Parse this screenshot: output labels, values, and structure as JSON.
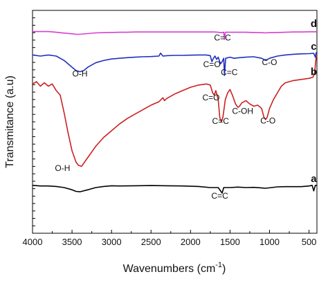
{
  "chart_data": {
    "type": "line",
    "ylabel": "Transmitance (a.u)",
    "xlabel_main": "Wavenumbers (cm",
    "xlabel_sup": "-1",
    "xlabel_close": ")",
    "x_reversed": true,
    "xlim": [
      4000,
      400
    ],
    "x_ticks": [
      4000,
      3500,
      3000,
      2500,
      2000,
      1500,
      1000,
      500
    ],
    "x_tick_labels": [
      "4000",
      "3500",
      "3000",
      "2500",
      "2000",
      "1500",
      "1000",
      "500"
    ],
    "y_ticks_labeled": false,
    "grid": false,
    "series": [
      {
        "name": "a",
        "color": "#000000",
        "points": [
          [
            4000,
            0.215
          ],
          [
            3900,
            0.212
          ],
          [
            3800,
            0.212
          ],
          [
            3700,
            0.21
          ],
          [
            3600,
            0.205
          ],
          [
            3500,
            0.195
          ],
          [
            3450,
            0.188
          ],
          [
            3400,
            0.186
          ],
          [
            3300,
            0.195
          ],
          [
            3200,
            0.205
          ],
          [
            3100,
            0.21
          ],
          [
            3000,
            0.213
          ],
          [
            2900,
            0.212
          ],
          [
            2700,
            0.213
          ],
          [
            2500,
            0.214
          ],
          [
            2300,
            0.213
          ],
          [
            2100,
            0.212
          ],
          [
            1900,
            0.21
          ],
          [
            1750,
            0.205
          ],
          [
            1650,
            0.205
          ],
          [
            1600,
            0.18
          ],
          [
            1580,
            0.205
          ],
          [
            1500,
            0.205
          ],
          [
            1400,
            0.207
          ],
          [
            1300,
            0.205
          ],
          [
            1200,
            0.206
          ],
          [
            1050,
            0.202
          ],
          [
            900,
            0.208
          ],
          [
            800,
            0.209
          ],
          [
            700,
            0.209
          ],
          [
            600,
            0.209
          ],
          [
            500,
            0.212
          ],
          [
            460,
            0.215
          ],
          [
            440,
            0.19
          ],
          [
            420,
            0.215
          ],
          [
            400,
            0.214
          ]
        ]
      },
      {
        "name": "b",
        "color": "#cc1f1f",
        "points": [
          [
            4000,
            0.67
          ],
          [
            3950,
            0.68
          ],
          [
            3900,
            0.66
          ],
          [
            3850,
            0.675
          ],
          [
            3800,
            0.66
          ],
          [
            3750,
            0.67
          ],
          [
            3700,
            0.64
          ],
          [
            3650,
            0.62
          ],
          [
            3600,
            0.54
          ],
          [
            3550,
            0.45
          ],
          [
            3500,
            0.37
          ],
          [
            3450,
            0.32
          ],
          [
            3420,
            0.305
          ],
          [
            3380,
            0.3
          ],
          [
            3300,
            0.34
          ],
          [
            3200,
            0.39
          ],
          [
            3100,
            0.43
          ],
          [
            3000,
            0.46
          ],
          [
            2900,
            0.49
          ],
          [
            2800,
            0.515
          ],
          [
            2700,
            0.535
          ],
          [
            2600,
            0.555
          ],
          [
            2500,
            0.575
          ],
          [
            2400,
            0.59
          ],
          [
            2350,
            0.608
          ],
          [
            2330,
            0.595
          ],
          [
            2300,
            0.605
          ],
          [
            2200,
            0.625
          ],
          [
            2100,
            0.64
          ],
          [
            2000,
            0.655
          ],
          [
            1900,
            0.665
          ],
          [
            1800,
            0.67
          ],
          [
            1750,
            0.665
          ],
          [
            1720,
            0.63
          ],
          [
            1700,
            0.62
          ],
          [
            1680,
            0.64
          ],
          [
            1650,
            0.6
          ],
          [
            1630,
            0.52
          ],
          [
            1610,
            0.5
          ],
          [
            1590,
            0.52
          ],
          [
            1560,
            0.6
          ],
          [
            1530,
            0.63
          ],
          [
            1500,
            0.645
          ],
          [
            1470,
            0.62
          ],
          [
            1430,
            0.58
          ],
          [
            1400,
            0.565
          ],
          [
            1380,
            0.57
          ],
          [
            1350,
            0.585
          ],
          [
            1300,
            0.595
          ],
          [
            1250,
            0.58
          ],
          [
            1200,
            0.57
          ],
          [
            1150,
            0.575
          ],
          [
            1100,
            0.56
          ],
          [
            1070,
            0.52
          ],
          [
            1050,
            0.51
          ],
          [
            1030,
            0.52
          ],
          [
            1000,
            0.56
          ],
          [
            950,
            0.6
          ],
          [
            900,
            0.63
          ],
          [
            850,
            0.66
          ],
          [
            800,
            0.675
          ],
          [
            700,
            0.685
          ],
          [
            600,
            0.69
          ],
          [
            500,
            0.695
          ],
          [
            450,
            0.7
          ],
          [
            430,
            0.72
          ],
          [
            410,
            0.79
          ],
          [
            400,
            0.795
          ]
        ]
      },
      {
        "name": "c",
        "color": "#1f2fbf",
        "points": [
          [
            4000,
            0.8
          ],
          [
            3900,
            0.795
          ],
          [
            3800,
            0.8
          ],
          [
            3700,
            0.795
          ],
          [
            3600,
            0.775
          ],
          [
            3500,
            0.745
          ],
          [
            3450,
            0.73
          ],
          [
            3400,
            0.725
          ],
          [
            3350,
            0.73
          ],
          [
            3300,
            0.745
          ],
          [
            3200,
            0.765
          ],
          [
            3100,
            0.775
          ],
          [
            3000,
            0.782
          ],
          [
            2900,
            0.785
          ],
          [
            2800,
            0.788
          ],
          [
            2700,
            0.79
          ],
          [
            2600,
            0.792
          ],
          [
            2500,
            0.793
          ],
          [
            2400,
            0.795
          ],
          [
            2380,
            0.808
          ],
          [
            2350,
            0.795
          ],
          [
            2300,
            0.797
          ],
          [
            2200,
            0.798
          ],
          [
            2100,
            0.798
          ],
          [
            2000,
            0.799
          ],
          [
            1900,
            0.8
          ],
          [
            1800,
            0.8
          ],
          [
            1750,
            0.797
          ],
          [
            1730,
            0.77
          ],
          [
            1710,
            0.785
          ],
          [
            1690,
            0.795
          ],
          [
            1670,
            0.78
          ],
          [
            1650,
            0.79
          ],
          [
            1620,
            0.76
          ],
          [
            1600,
            0.77
          ],
          [
            1580,
            0.785
          ],
          [
            1570,
            0.708
          ],
          [
            1555,
            0.785
          ],
          [
            1500,
            0.79
          ],
          [
            1450,
            0.785
          ],
          [
            1400,
            0.787
          ],
          [
            1300,
            0.79
          ],
          [
            1200,
            0.792
          ],
          [
            1100,
            0.785
          ],
          [
            1050,
            0.775
          ],
          [
            1000,
            0.785
          ],
          [
            900,
            0.795
          ],
          [
            800,
            0.8
          ],
          [
            700,
            0.803
          ],
          [
            600,
            0.805
          ],
          [
            500,
            0.806
          ],
          [
            440,
            0.807
          ],
          [
            420,
            0.79
          ],
          [
            410,
            0.81
          ],
          [
            400,
            0.808
          ]
        ]
      },
      {
        "name": "d",
        "color": "#d43fd4",
        "points": [
          [
            4000,
            0.905
          ],
          [
            3900,
            0.905
          ],
          [
            3800,
            0.905
          ],
          [
            3700,
            0.902
          ],
          [
            3600,
            0.898
          ],
          [
            3500,
            0.895
          ],
          [
            3450,
            0.893
          ],
          [
            3400,
            0.893
          ],
          [
            3300,
            0.896
          ],
          [
            3200,
            0.899
          ],
          [
            3100,
            0.9
          ],
          [
            3000,
            0.901
          ],
          [
            2900,
            0.902
          ],
          [
            2800,
            0.902
          ],
          [
            2700,
            0.903
          ],
          [
            2600,
            0.903
          ],
          [
            2500,
            0.903
          ],
          [
            2400,
            0.903
          ],
          [
            2300,
            0.903
          ],
          [
            2200,
            0.903
          ],
          [
            2100,
            0.903
          ],
          [
            2000,
            0.903
          ],
          [
            1900,
            0.903
          ],
          [
            1800,
            0.903
          ],
          [
            1700,
            0.903
          ],
          [
            1650,
            0.902
          ],
          [
            1620,
            0.9
          ],
          [
            1600,
            0.901
          ],
          [
            1580,
            0.902
          ],
          [
            1570,
            0.87
          ],
          [
            1560,
            0.902
          ],
          [
            1500,
            0.902
          ],
          [
            1400,
            0.902
          ],
          [
            1300,
            0.902
          ],
          [
            1200,
            0.901
          ],
          [
            1100,
            0.9
          ],
          [
            1050,
            0.899
          ],
          [
            1000,
            0.9
          ],
          [
            900,
            0.901
          ],
          [
            800,
            0.902
          ],
          [
            700,
            0.903
          ],
          [
            600,
            0.903
          ],
          [
            500,
            0.904
          ],
          [
            420,
            0.904
          ],
          [
            400,
            0.904
          ]
        ]
      }
    ],
    "series_labels": [
      {
        "text": "a",
        "x": 440,
        "y": 0.23
      },
      {
        "text": "b",
        "x": 440,
        "y": 0.71
      },
      {
        "text": "c",
        "x": 440,
        "y": 0.823
      },
      {
        "text": "d",
        "x": 440,
        "y": 0.925
      }
    ],
    "annotations": [
      {
        "text": "C=C",
        "x": 1595,
        "y": 0.865,
        "series": "d"
      },
      {
        "text": "O-H",
        "x": 3400,
        "y": 0.703,
        "series": "c"
      },
      {
        "text": "C=O",
        "x": 1730,
        "y": 0.745,
        "series": "c"
      },
      {
        "text": "C=C",
        "x": 1510,
        "y": 0.71,
        "series": "c"
      },
      {
        "text": "C-O",
        "x": 1000,
        "y": 0.755,
        "series": "c"
      },
      {
        "text": "C=O",
        "x": 1740,
        "y": 0.597,
        "series": "b"
      },
      {
        "text": "C=C",
        "x": 1620,
        "y": 0.49,
        "series": "b"
      },
      {
        "text": "C-OH",
        "x": 1340,
        "y": 0.535,
        "series": "b"
      },
      {
        "text": "C-O",
        "x": 1020,
        "y": 0.492,
        "series": "b"
      },
      {
        "text": "O-H",
        "x": 3620,
        "y": 0.28,
        "series": "b"
      },
      {
        "text": "C=C",
        "x": 1630,
        "y": 0.155,
        "series": "a"
      }
    ]
  }
}
